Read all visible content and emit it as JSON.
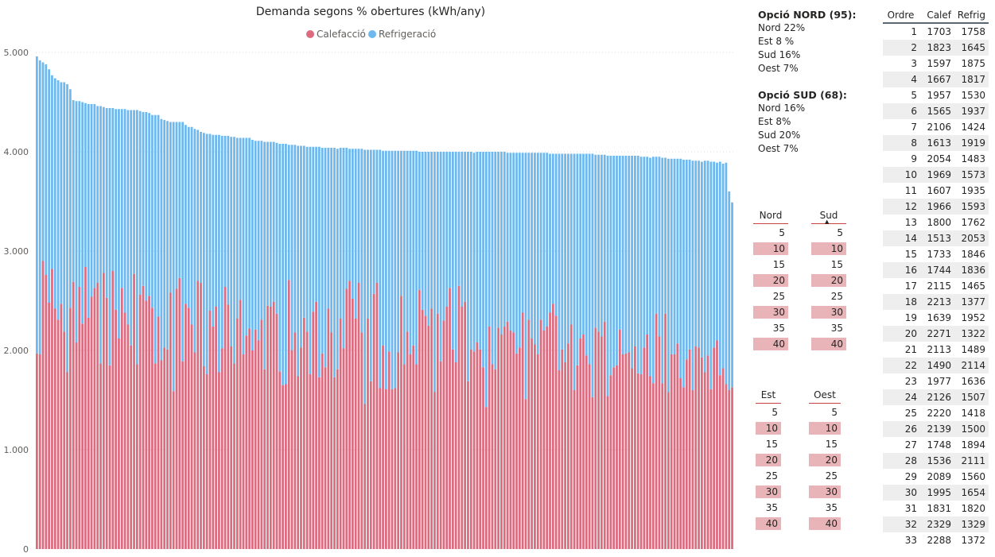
{
  "chart_data": {
    "type": "bar",
    "stacked": true,
    "title": "Demanda segons % obertures (kWh/any)",
    "ylim": [
      0,
      5000
    ],
    "yticks": [
      "0",
      "1.000",
      "2.000",
      "3.000",
      "4.000",
      "5.000"
    ],
    "ytick_values": [
      0,
      1000,
      2000,
      3000,
      4000,
      5000
    ],
    "grid": true,
    "legend_position": "top-center",
    "series": [
      {
        "name": "Calefacció",
        "color": "#dd6b7f",
        "values": [
          1970,
          1960,
          2900,
          2760,
          2480,
          2820,
          2420,
          2310,
          2470,
          2190,
          1780,
          2430,
          2690,
          2080,
          2640,
          2270,
          2840,
          2330,
          2540,
          2630,
          2680,
          1870,
          2780,
          2530,
          1850,
          2800,
          2410,
          2120,
          2630,
          2380,
          2260,
          2050,
          2770,
          1860,
          2560,
          2650,
          2500,
          2550,
          2430,
          1870,
          2340,
          1900,
          2030,
          2010,
          2580,
          1590,
          2620,
          2730,
          1890,
          2470,
          2430,
          2260,
          1980,
          2700,
          2680,
          1840,
          1760,
          2400,
          2240,
          2440,
          1780,
          2020,
          2640,
          2460,
          2040,
          1870,
          2320,
          2510,
          1960,
          2150,
          2220,
          2000,
          2210,
          2100,
          2310,
          1810,
          2450,
          2440,
          2490,
          2370,
          1790,
          1650,
          1660,
          2710,
          2000,
          2180,
          1740,
          2030,
          2330,
          2190,
          1760,
          2390,
          2490,
          1730,
          1970,
          1830,
          2420,
          2180,
          1730,
          1810,
          2320,
          2020,
          2620,
          2700,
          2520,
          2320,
          2680,
          2180,
          1460,
          2320,
          1690,
          2570,
          2680,
          1620,
          2050,
          1610,
          1990,
          1610,
          1620,
          1980,
          2550,
          1860,
          2190,
          1960,
          2050,
          1860,
          2610,
          2410,
          2350,
          2250,
          2420,
          1580,
          2370,
          1890,
          2300,
          2440,
          2630,
          2010,
          1880,
          2650,
          2440,
          2490,
          1690,
          2010,
          1990,
          2080,
          2010,
          1830,
          1430,
          2240,
          1860,
          1810,
          2230,
          2160,
          2240,
          2290,
          2200,
          2180,
          1970,
          2030,
          2380,
          1510,
          2310,
          2120,
          2060,
          1960,
          2310,
          2200,
          2240,
          2380,
          2470,
          2350,
          1800,
          2010,
          1880,
          2070,
          2260,
          1600,
          1850,
          2120,
          2160,
          1950,
          1860,
          1530,
          2230,
          2190,
          2140,
          2290,
          1540,
          1750,
          1830,
          1850,
          2210,
          1960,
          1970,
          1980,
          1820,
          2040,
          1770,
          1760,
          2030,
          2160,
          1740,
          1670,
          2370,
          2140,
          1670,
          2370,
          1580,
          1960,
          1960,
          2070,
          1720,
          1630,
          1910,
          2010,
          1600,
          2040,
          2030,
          1930,
          1780,
          1950,
          1610,
          2030,
          2100,
          1750,
          1820,
          1660,
          1600,
          1630
        ]
      },
      {
        "name": "Refrigeració",
        "color": "#6db8ef",
        "values": [
          2990,
          2960,
          2000,
          2120,
          2350,
          1950,
          2320,
          2410,
          2230,
          2510,
          2900,
          2200,
          1830,
          2430,
          1870,
          2230,
          1650,
          2150,
          1940,
          1850,
          1780,
          2590,
          1670,
          1910,
          2590,
          1640,
          2020,
          2310,
          1800,
          2050,
          2160,
          2370,
          1650,
          2560,
          1850,
          1750,
          1900,
          1840,
          1940,
          2500,
          2030,
          2430,
          2290,
          2300,
          1720,
          2710,
          1680,
          1570,
          2410,
          1800,
          1820,
          1990,
          2250,
          1520,
          1520,
          2350,
          2420,
          1780,
          1930,
          1730,
          2390,
          2140,
          1520,
          1700,
          2110,
          2280,
          1820,
          1630,
          2180,
          1990,
          1920,
          2120,
          1900,
          2010,
          1800,
          2290,
          1650,
          1660,
          1610,
          1720,
          2290,
          2430,
          2420,
          1360,
          2070,
          1890,
          2320,
          2030,
          1730,
          1860,
          2290,
          1660,
          1560,
          2320,
          2070,
          2210,
          1620,
          1860,
          2310,
          2220,
          1720,
          2020,
          1420,
          1330,
          1510,
          1710,
          1350,
          1850,
          2560,
          1700,
          2330,
          1450,
          1340,
          2400,
          1960,
          2400,
          2020,
          2400,
          2390,
          2030,
          1460,
          2150,
          1820,
          2050,
          1960,
          2150,
          1390,
          1590,
          1650,
          1750,
          1580,
          2420,
          1630,
          2110,
          1700,
          1560,
          1370,
          1990,
          2120,
          1350,
          1560,
          1510,
          2310,
          1990,
          2000,
          1920,
          1990,
          2170,
          2570,
          1760,
          2140,
          2190,
          1770,
          1840,
          1760,
          1700,
          1790,
          1810,
          2020,
          1960,
          1610,
          2480,
          1680,
          1870,
          1930,
          2030,
          1680,
          1790,
          1750,
          1600,
          1510,
          1630,
          2180,
          1970,
          2100,
          1910,
          1720,
          2380,
          2130,
          1860,
          1820,
          2030,
          2120,
          2450,
          1740,
          1780,
          1830,
          1680,
          2420,
          2210,
          2130,
          2110,
          1750,
          2000,
          1990,
          1980,
          2140,
          1920,
          2190,
          2190,
          1920,
          1790,
          2200,
          2280,
          1580,
          1810,
          2270,
          1570,
          2350,
          1970,
          1970,
          1860,
          2210,
          2290,
          2010,
          1910,
          2310,
          1870,
          1880,
          1970,
          2130,
          1960,
          2290,
          1870,
          1790,
          2150,
          2060,
          2230,
          2000,
          1860
        ]
      }
    ]
  },
  "options": [
    {
      "title": "Opció NORD (95):",
      "lines": [
        "Nord 22%",
        "Est 8 %",
        "Sud 16%",
        "Oest 7%"
      ]
    },
    {
      "title": "Opció SUD (68):",
      "lines": [
        "Nord 16%",
        "Est 8%",
        "Sud 20%",
        "Oest 7%"
      ]
    }
  ],
  "slicers": {
    "nord": {
      "title": "Nord",
      "items": [
        "5",
        "10",
        "15",
        "20",
        "25",
        "30",
        "35",
        "40"
      ]
    },
    "sud": {
      "title": "Sud",
      "items": [
        "5",
        "10",
        "15",
        "20",
        "25",
        "30",
        "35",
        "40"
      ]
    },
    "est": {
      "title": "Est",
      "items": [
        "5",
        "10",
        "15",
        "20",
        "25",
        "30",
        "35",
        "40"
      ]
    },
    "oest": {
      "title": "Oest",
      "items": [
        "5",
        "10",
        "15",
        "20",
        "25",
        "30",
        "35",
        "40"
      ]
    },
    "selected": [
      "10",
      "20",
      "30",
      "40"
    ],
    "accent_color": "#c8413f",
    "selected_color": "#e8b4b8"
  },
  "table": {
    "headers": [
      "Ordre",
      "Calef",
      "Refrig"
    ],
    "rows": [
      [
        "1",
        "1703",
        "1758"
      ],
      [
        "2",
        "1823",
        "1645"
      ],
      [
        "3",
        "1597",
        "1875"
      ],
      [
        "4",
        "1667",
        "1817"
      ],
      [
        "5",
        "1957",
        "1530"
      ],
      [
        "6",
        "1565",
        "1937"
      ],
      [
        "7",
        "2106",
        "1424"
      ],
      [
        "8",
        "1613",
        "1919"
      ],
      [
        "9",
        "2054",
        "1483"
      ],
      [
        "10",
        "1969",
        "1573"
      ],
      [
        "11",
        "1607",
        "1935"
      ],
      [
        "12",
        "1966",
        "1593"
      ],
      [
        "13",
        "1800",
        "1762"
      ],
      [
        "14",
        "1513",
        "2053"
      ],
      [
        "15",
        "1733",
        "1846"
      ],
      [
        "16",
        "1744",
        "1836"
      ],
      [
        "17",
        "2115",
        "1465"
      ],
      [
        "18",
        "2213",
        "1377"
      ],
      [
        "19",
        "1639",
        "1952"
      ],
      [
        "20",
        "2271",
        "1322"
      ],
      [
        "21",
        "2113",
        "1489"
      ],
      [
        "22",
        "1490",
        "2114"
      ],
      [
        "23",
        "1977",
        "1636"
      ],
      [
        "24",
        "2126",
        "1507"
      ],
      [
        "25",
        "2220",
        "1418"
      ],
      [
        "26",
        "2139",
        "1500"
      ],
      [
        "27",
        "1748",
        "1894"
      ],
      [
        "28",
        "1536",
        "2111"
      ],
      [
        "29",
        "2089",
        "1560"
      ],
      [
        "30",
        "1995",
        "1654"
      ],
      [
        "31",
        "1831",
        "1820"
      ],
      [
        "32",
        "2329",
        "1329"
      ],
      [
        "33",
        "2288",
        "1372"
      ]
    ]
  }
}
